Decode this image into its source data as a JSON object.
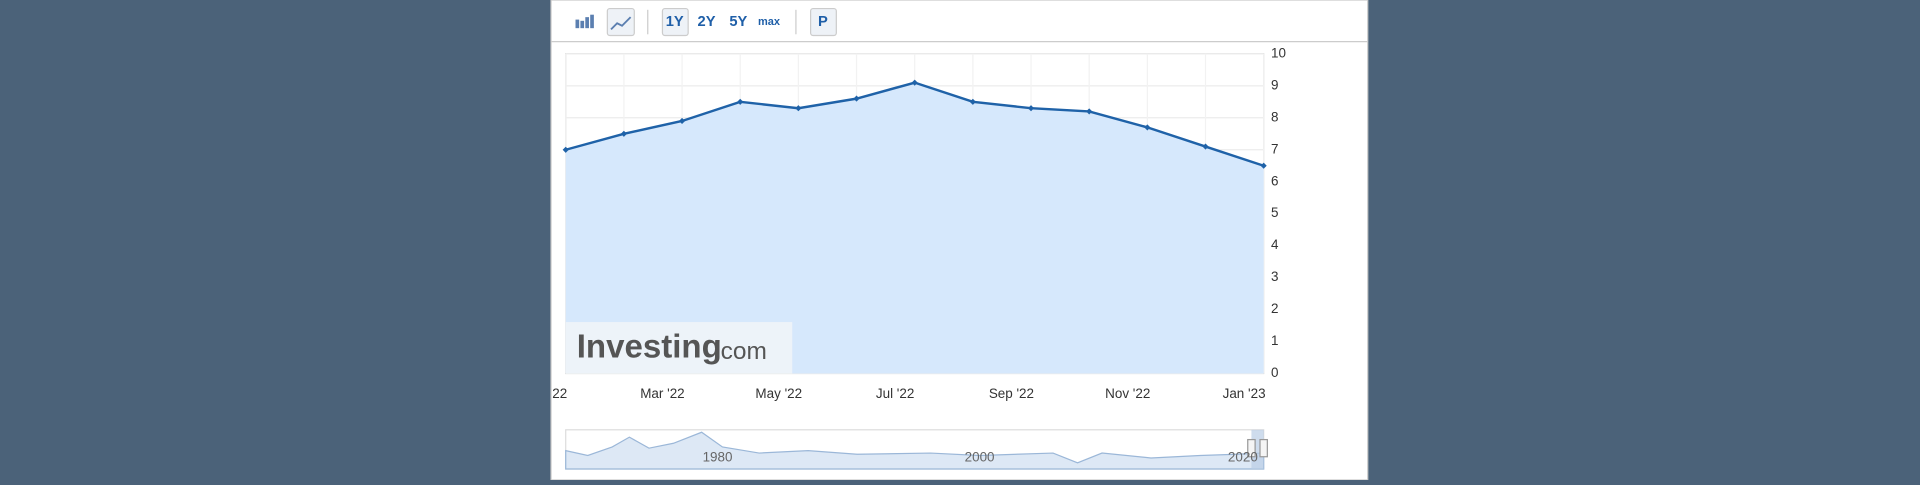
{
  "toolbar": {
    "buttons": [
      "1Y",
      "2Y",
      "5Y",
      "max",
      "P"
    ]
  },
  "watermark": {
    "brand": "Investing",
    "suffix": ".com"
  },
  "chart_data": {
    "type": "line",
    "categories": [
      "22",
      null,
      "Mar '22",
      null,
      "May '22",
      null,
      "Jul '22",
      null,
      "Sep '22",
      null,
      "Nov '22",
      null,
      "Jan '23"
    ],
    "values": [
      7.0,
      7.5,
      7.9,
      8.5,
      8.3,
      8.6,
      9.1,
      8.5,
      8.3,
      8.2,
      7.7,
      7.1,
      6.5
    ],
    "color": "#1f62a8",
    "ylim": [
      0,
      10
    ],
    "yticks": [
      0,
      1,
      2,
      3,
      4,
      5,
      6,
      7,
      8,
      9,
      10
    ],
    "grid": true
  },
  "navigator": {
    "labels": [
      "1980",
      "2000",
      "2020"
    ]
  }
}
